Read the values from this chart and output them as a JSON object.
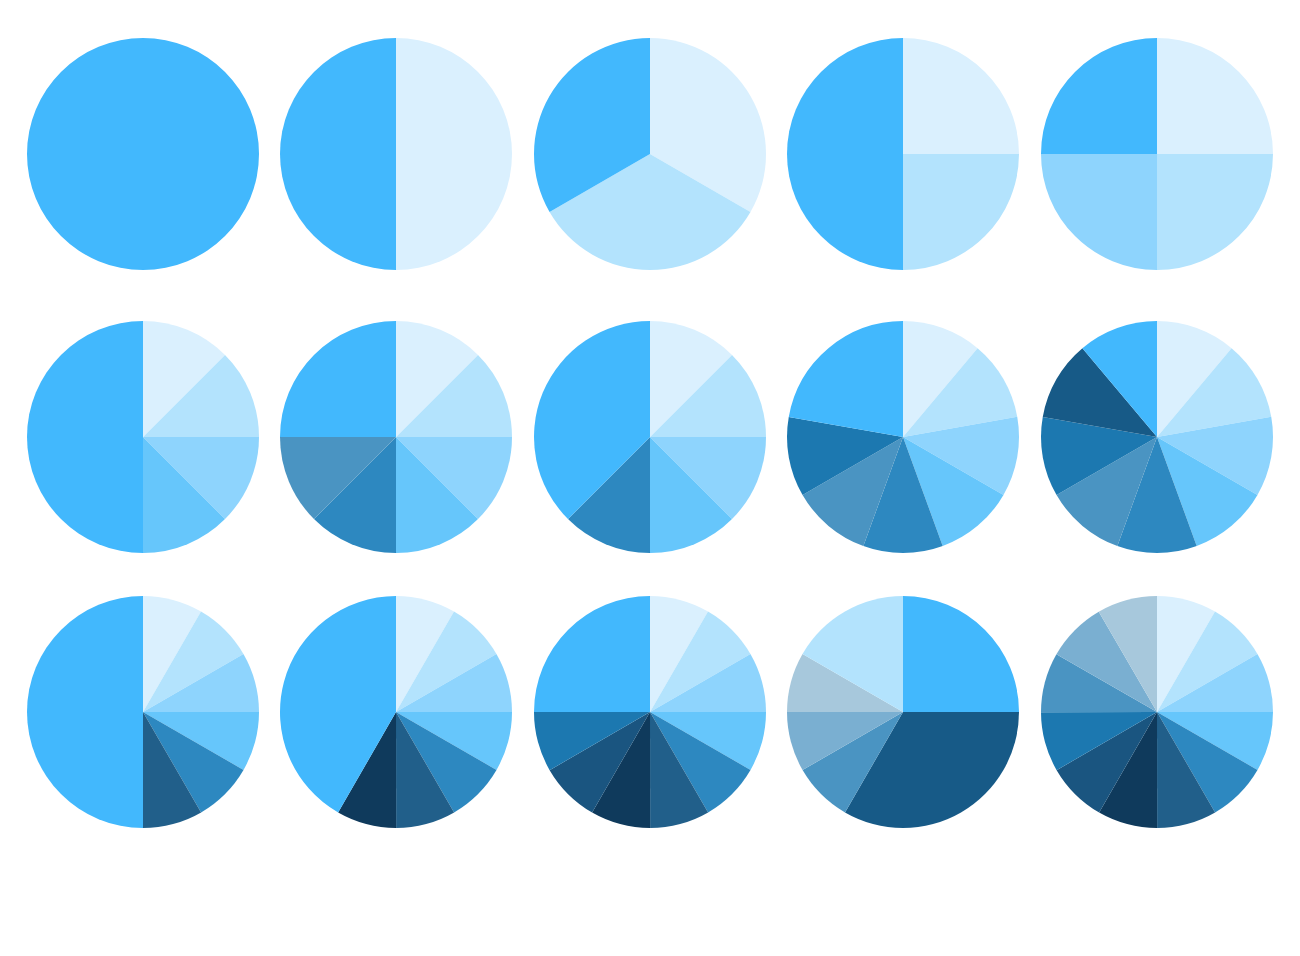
{
  "chart_data": [
    {
      "type": "pie",
      "categories": [
        null
      ],
      "values": [
        100
      ],
      "colors": [
        "#42b8fd"
      ]
    },
    {
      "type": "pie",
      "categories": [
        null,
        null
      ],
      "values": [
        50,
        50
      ],
      "colors": [
        "#daf0fe",
        "#42b8fd"
      ]
    },
    {
      "type": "pie",
      "categories": [
        null,
        null,
        null
      ],
      "values": [
        33.33,
        33.33,
        33.34
      ],
      "colors": [
        "#daf0fe",
        "#b3e3fd",
        "#42b8fd"
      ]
    },
    {
      "type": "pie",
      "categories": [
        null,
        null,
        null
      ],
      "values": [
        25,
        25,
        50
      ],
      "colors": [
        "#daf0fe",
        "#b3e3fd",
        "#42b8fd"
      ]
    },
    {
      "type": "pie",
      "categories": [
        null,
        null,
        null,
        null
      ],
      "values": [
        25,
        25,
        25,
        25
      ],
      "colors": [
        "#daf0fe",
        "#b3e3fd",
        "#8ed4fd",
        "#42b8fd"
      ]
    },
    {
      "type": "pie",
      "categories": [
        null,
        null,
        null,
        null,
        null
      ],
      "values": [
        12.5,
        12.5,
        12.5,
        12.5,
        50
      ],
      "colors": [
        "#daf0fe",
        "#b3e3fd",
        "#8ed4fd",
        "#66c6fb",
        "#42b8fd"
      ]
    },
    {
      "type": "pie",
      "categories": [
        null,
        null,
        null,
        null,
        null,
        null,
        null
      ],
      "values": [
        12.5,
        12.5,
        12.5,
        12.5,
        12.5,
        12.5,
        25
      ],
      "colors": [
        "#daf0fe",
        "#b3e3fd",
        "#8ed4fd",
        "#66c6fb",
        "#2d88c0",
        "#4a94c2",
        "#42b8fd"
      ]
    },
    {
      "type": "pie",
      "categories": [
        null,
        null,
        null,
        null,
        null,
        null
      ],
      "values": [
        12.5,
        12.5,
        12.5,
        12.5,
        12.5,
        37.5
      ],
      "colors": [
        "#daf0fe",
        "#b3e3fd",
        "#8ed4fd",
        "#66c6fb",
        "#2d88c0",
        "#42b8fd"
      ]
    },
    {
      "type": "pie",
      "categories": [
        null,
        null,
        null,
        null,
        null,
        null,
        null,
        null
      ],
      "values": [
        11.11,
        11.11,
        11.11,
        11.11,
        11.11,
        11.11,
        11.11,
        22.23
      ],
      "colors": [
        "#daf0fe",
        "#b3e3fd",
        "#8ed4fd",
        "#66c6fb",
        "#2d88c0",
        "#4a94c2",
        "#1c78b0",
        "#42b8fd"
      ]
    },
    {
      "type": "pie",
      "categories": [
        null,
        null,
        null,
        null,
        null,
        null,
        null,
        null,
        null
      ],
      "values": [
        11.11,
        11.11,
        11.11,
        11.11,
        11.11,
        11.11,
        11.11,
        11.11,
        11.12
      ],
      "colors": [
        "#daf0fe",
        "#b3e3fd",
        "#8ed4fd",
        "#66c6fb",
        "#2d88c0",
        "#4a94c2",
        "#1c78b0",
        "#175a87",
        "#42b8fd"
      ]
    },
    {
      "type": "pie",
      "categories": [
        null,
        null,
        null,
        null,
        null,
        null,
        null
      ],
      "values": [
        8.33,
        8.33,
        8.33,
        8.33,
        8.33,
        8.35,
        50
      ],
      "colors": [
        "#daf0fe",
        "#b3e3fd",
        "#8ed4fd",
        "#66c6fb",
        "#2d88c0",
        "#215f8a",
        "#42b8fd"
      ]
    },
    {
      "type": "pie",
      "categories": [
        null,
        null,
        null,
        null,
        null,
        null,
        null,
        null
      ],
      "values": [
        8.33,
        8.33,
        8.33,
        8.33,
        8.33,
        8.33,
        8.33,
        41.69
      ],
      "colors": [
        "#daf0fe",
        "#b3e3fd",
        "#8ed4fd",
        "#66c6fb",
        "#2d88c0",
        "#215f8a",
        "#0f3a5c",
        "#42b8fd"
      ]
    },
    {
      "type": "pie",
      "categories": [
        null,
        null,
        null,
        null,
        null,
        null,
        null,
        null,
        null,
        null
      ],
      "values": [
        8.33,
        8.33,
        8.33,
        8.33,
        8.33,
        8.33,
        8.33,
        8.33,
        8.36,
        25
      ],
      "colors": [
        "#daf0fe",
        "#b3e3fd",
        "#8ed4fd",
        "#66c6fb",
        "#2d88c0",
        "#215f8a",
        "#0f3a5c",
        "#1a5580",
        "#1c78b0",
        "#42b8fd"
      ]
    },
    {
      "type": "pie",
      "categories": [
        null,
        null,
        null,
        null,
        null,
        null
      ],
      "values": [
        25,
        33.33,
        8.33,
        8.33,
        8.34,
        16.67
      ],
      "colors": [
        "#42b8fd",
        "#175a87",
        "#4a94c2",
        "#7aafd1",
        "#a7c8dc",
        "#b3e3fd"
      ]
    },
    {
      "type": "pie",
      "categories": [
        null,
        null,
        null,
        null,
        null,
        null,
        null,
        null,
        null,
        null,
        null,
        null
      ],
      "values": [
        8.33,
        8.33,
        8.33,
        8.33,
        8.33,
        8.33,
        8.33,
        8.33,
        8.33,
        8.33,
        8.33,
        8.37
      ],
      "colors": [
        "#daf0fe",
        "#b3e3fd",
        "#8ed4fd",
        "#66c6fb",
        "#2d88c0",
        "#215f8a",
        "#0f3a5c",
        "#1a5580",
        "#1c78b0",
        "#4a94c2",
        "#7aafd1",
        "#a7c8dc"
      ]
    }
  ]
}
